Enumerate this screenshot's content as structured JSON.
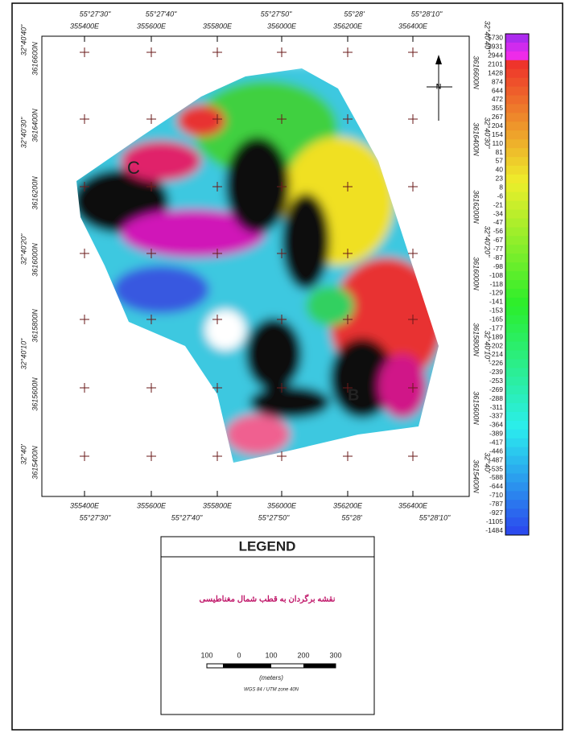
{
  "map": {
    "top_lon": [
      "55°27'30\"",
      "55°27'40\"",
      "55°27'50\"",
      "55°28'",
      "55°28'10\""
    ],
    "top_utm": [
      "355400E",
      "355600E",
      "355800E",
      "356000E",
      "356200E",
      "356400E"
    ],
    "bottom_utm": [
      "355400E",
      "355600E",
      "355800E",
      "356000E",
      "356200E",
      "356400E"
    ],
    "bottom_lon": [
      "55°27'30\"",
      "55°27'40\"",
      "55°27'50\"",
      "55°28'",
      "55°28'10\""
    ],
    "left_lat": [
      "32°40'40\"",
      "32°40'30\"",
      "32°40'20\"",
      "32°40'10\"",
      "32°40'"
    ],
    "left_utm": [
      "3616600N",
      "3616400N",
      "3616200N",
      "3616000N",
      "3615800N",
      "3615600N",
      "3615400N"
    ],
    "right_lat": [
      "32°40'40\"",
      "32°40'30\"",
      "32°40'20\"",
      "32°40'10\"",
      "32°40'"
    ],
    "right_utm": [
      "3616600N",
      "3616400N",
      "3616200N",
      "3616000N",
      "3615800N",
      "3615600N",
      "3615400N"
    ],
    "north": "N",
    "annotations": [
      "C",
      "B"
    ]
  },
  "colorbar": {
    "labels": [
      5730,
      3931,
      2944,
      2101,
      1428,
      874,
      644,
      472,
      355,
      267,
      204,
      154,
      110,
      81,
      57,
      40,
      23,
      8,
      -6,
      -21,
      -34,
      -47,
      -56,
      -67,
      -77,
      -87,
      -98,
      -108,
      -118,
      -129,
      -141,
      -153,
      -165,
      -177,
      -189,
      -202,
      -214,
      -226,
      -239,
      -253,
      -269,
      -288,
      -311,
      -337,
      -364,
      -389,
      -417,
      -446,
      -487,
      -535,
      -588,
      -644,
      -710,
      -787,
      -927,
      -1105,
      -1484
    ]
  },
  "legend": {
    "title": "LEGEND",
    "text": "نقشه برگردان به قطب شمال مغناطیسی",
    "scale_labels": [
      "100",
      "0",
      "100",
      "200",
      "300"
    ],
    "unit": "(meters)",
    "datum": "WGS 84 / UTM zone 40N"
  }
}
